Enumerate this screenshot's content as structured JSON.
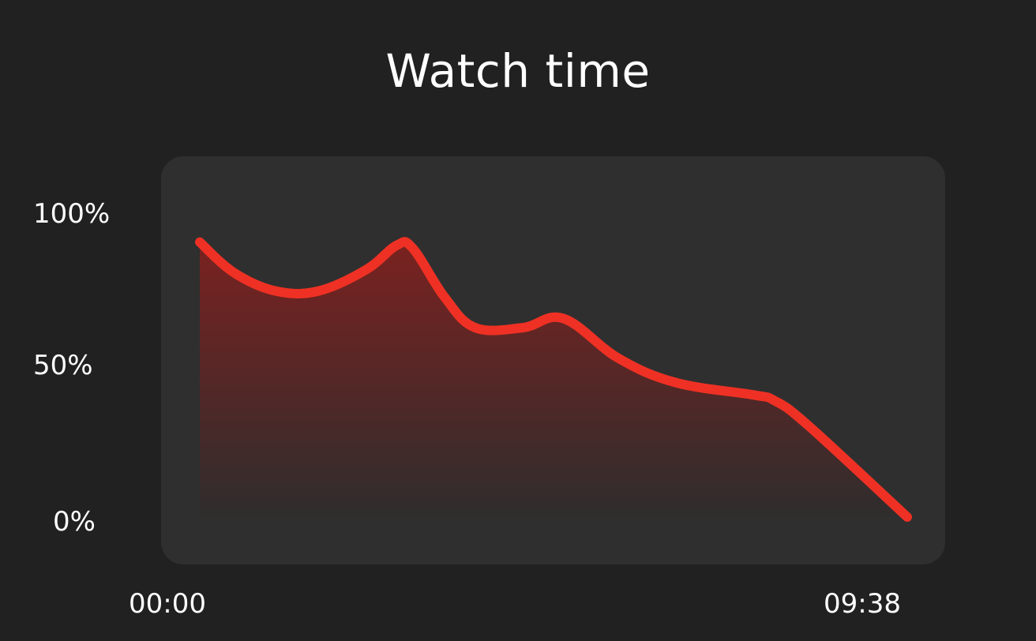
{
  "chart_data": {
    "type": "area",
    "title": "Watch time",
    "xlabel": "",
    "ylabel": "",
    "x_tick_labels": [
      "00:00",
      "09:38"
    ],
    "y_tick_labels": [
      "100%",
      "50%",
      "0%"
    ],
    "ylim": [
      0,
      100
    ],
    "xlim": [
      0,
      578
    ],
    "grid": false,
    "legend": "none",
    "series": [
      {
        "x": [
          0,
          28,
          62,
          97,
          136,
          161,
          174,
          200,
          225,
          264,
          297,
          342,
          389,
          452,
          470,
          497,
          578
        ],
        "values": [
          90,
          80,
          74,
          74,
          81,
          89,
          88,
          72,
          62,
          62,
          65,
          52,
          44,
          40,
          38,
          30,
          0
        ]
      }
    ],
    "colors": {
      "line": "#EE3124",
      "fill_top": "#7A2220",
      "fill_bottom": "#2F2D2D",
      "panel": "#2F2F2F",
      "background": "#212121"
    }
  }
}
